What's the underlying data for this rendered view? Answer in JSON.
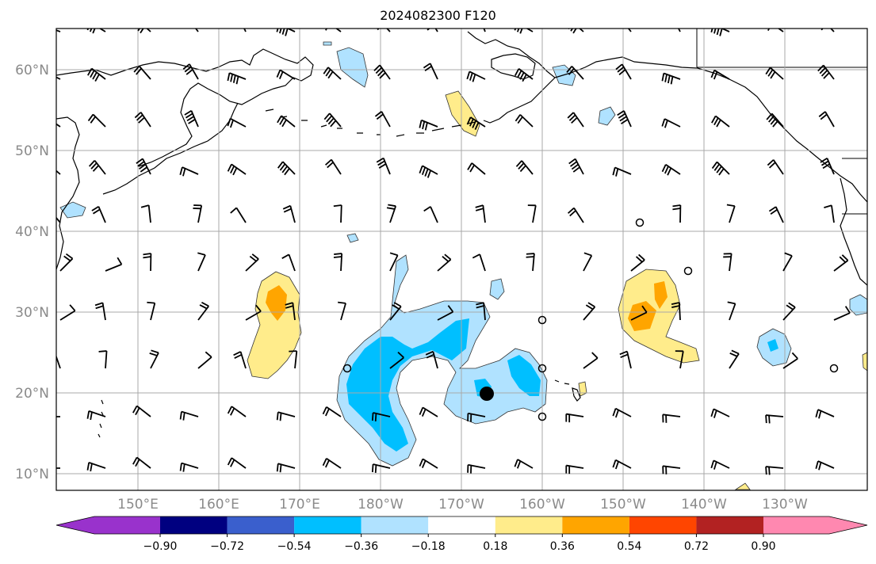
{
  "title": "2024082300 F120",
  "latitude_labels": [
    "60°N",
    "50°N",
    "40°N",
    "30°N",
    "20°N",
    "10°N"
  ],
  "longitude_labels": [
    "150°E",
    "160°E",
    "170°E",
    "180°W",
    "170°W",
    "160°W",
    "150°W",
    "140°W",
    "130°W"
  ],
  "colorbar": {
    "tick_labels": [
      "−0.90",
      "−0.72",
      "−0.54",
      "−0.36",
      "−0.18",
      "0.18",
      "0.36",
      "0.54",
      "0.72",
      "0.90"
    ],
    "colors": [
      "#9932cc",
      "#000080",
      "#3a5fcd",
      "#00bfff",
      "#b0e2ff",
      "#ffffff",
      "#ffec8b",
      "#ffa500",
      "#ff4500",
      "#b22222",
      "#ff88b0"
    ]
  },
  "colors": {
    "light_blue": "#b0e2ff",
    "mid_blue": "#00bfff",
    "light_yellow": "#ffec8b",
    "orange": "#ffa500",
    "grid": "#a9a9a9"
  }
}
